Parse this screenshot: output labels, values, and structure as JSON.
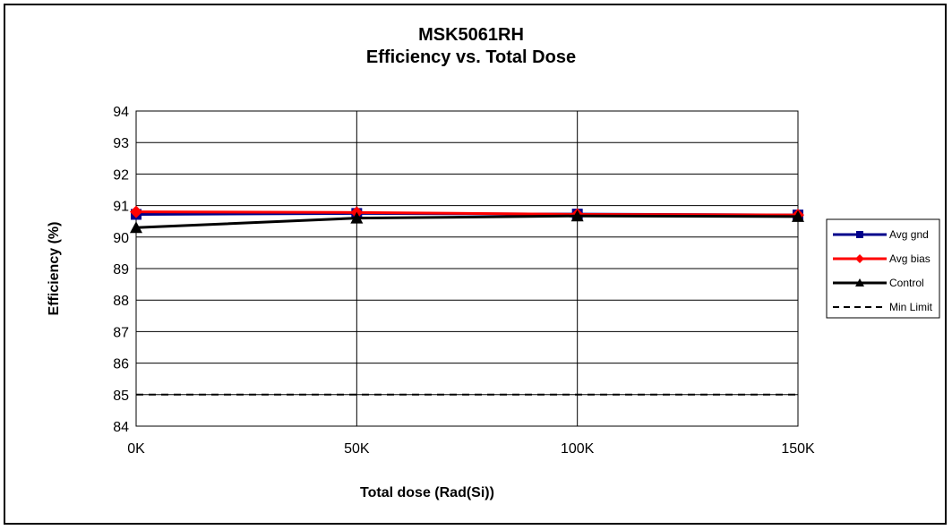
{
  "chart_data": {
    "type": "line",
    "title": "MSK5061RH",
    "subtitle": "Efficiency vs. Total Dose",
    "xlabel": "Total dose (Rad(Si))",
    "ylabel": "Efficiency (%)",
    "categories": [
      "0K",
      "50K",
      "100K",
      "150K"
    ],
    "ylim": [
      84,
      94
    ],
    "yticks": [
      "84",
      "85",
      "86",
      "87",
      "88",
      "89",
      "90",
      "91",
      "92",
      "93",
      "94"
    ],
    "grid": true,
    "legend_position": "right",
    "series": [
      {
        "name": "Avg gnd",
        "values": [
          90.72,
          90.75,
          90.73,
          90.7
        ],
        "color": "#00008b",
        "marker": "square",
        "dash": false
      },
      {
        "name": "Avg bias",
        "values": [
          90.8,
          90.78,
          90.72,
          90.7
        ],
        "color": "#ff0000",
        "marker": "diamond",
        "dash": false
      },
      {
        "name": "Control",
        "values": [
          90.3,
          90.6,
          90.67,
          90.65
        ],
        "color": "#000000",
        "marker": "triangle",
        "dash": false
      },
      {
        "name": "Min Limit",
        "values": [
          85,
          85,
          85,
          85
        ],
        "color": "#000000",
        "marker": "none",
        "dash": true
      }
    ]
  }
}
